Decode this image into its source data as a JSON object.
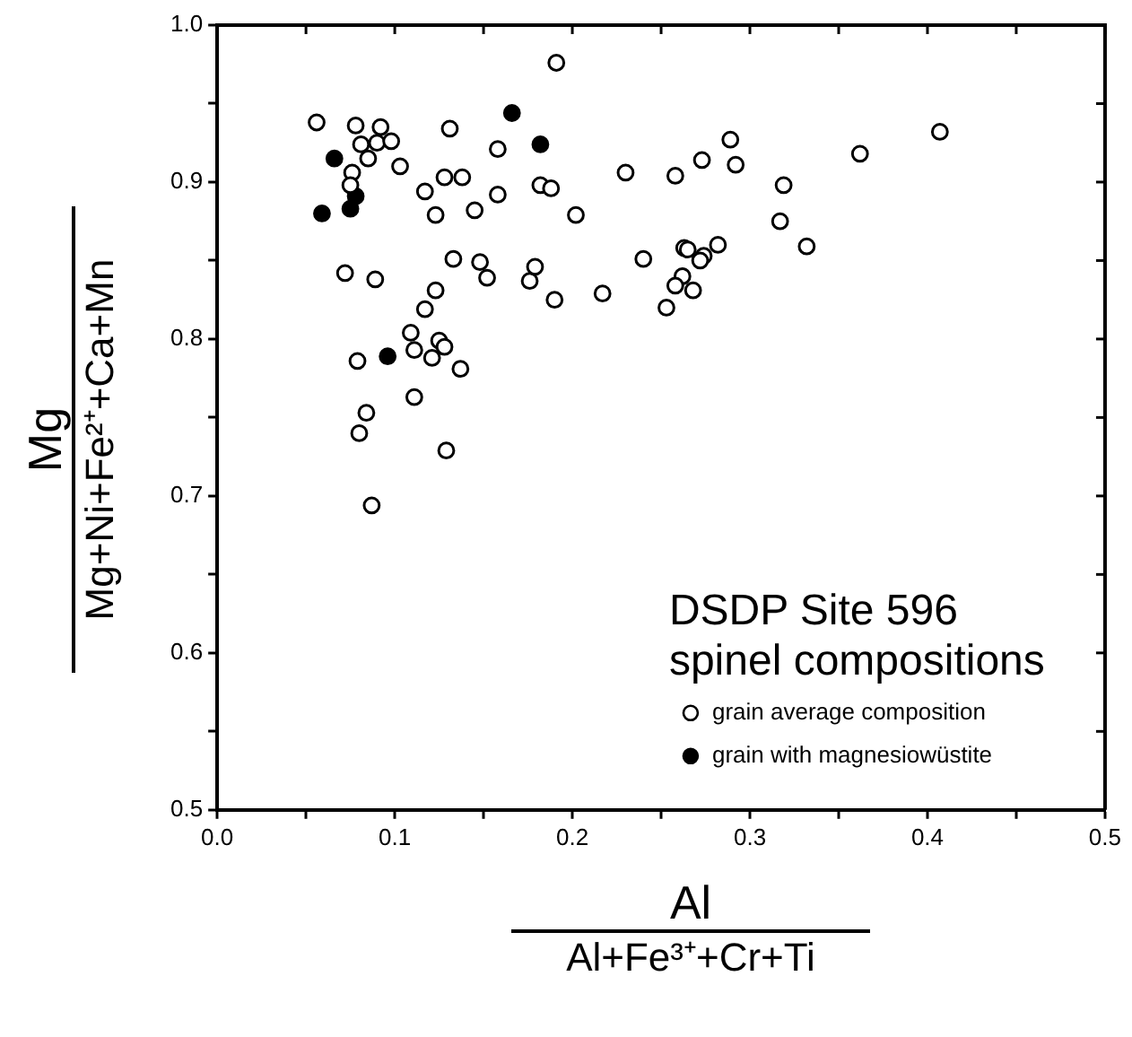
{
  "chart_data": {
    "type": "scatter",
    "xlabel": "Al\nAl+Fe³⁺+Cr+Ti",
    "ylabel": "Mg\nMg+Ni+Fe²⁺+Ca+Mn",
    "legend_title": "DSDP Site 596\nspinel compositions",
    "legend": "bottom right",
    "marker": "circle",
    "grid": false,
    "xlim": [
      0,
      0.5
    ],
    "ylim": [
      0.5,
      1.0
    ],
    "xticks": [
      {
        "value": 0,
        "label": "0.0"
      },
      {
        "value": 0.05,
        "label": null
      },
      0.1,
      {
        "value": 0.15,
        "label": null
      },
      0.2,
      {
        "value": 0.25,
        "label": null
      },
      0.3,
      {
        "value": 0.35,
        "label": null
      },
      0.4,
      {
        "value": 0.45,
        "label": null
      },
      0.5
    ],
    "yticks": [
      0.5,
      {
        "value": 0.55,
        "label": null
      },
      0.6,
      {
        "value": 0.65,
        "label": null
      },
      0.7,
      {
        "value": 0.75,
        "label": null
      },
      0.8,
      {
        "value": 0.85,
        "label": null
      },
      0.9,
      {
        "value": 0.95,
        "label": null
      },
      {
        "value": 1.0,
        "label": "1.0"
      }
    ],
    "series": [
      {
        "name": "grain average composition",
        "color": "#ffffff",
        "x": [
          0.056,
          0.078,
          0.092,
          0.131,
          0.081,
          0.09,
          0.098,
          0.085,
          0.158,
          0.103,
          0.076,
          0.075,
          0.117,
          0.128,
          0.138,
          0.158,
          0.123,
          0.145,
          0.182,
          0.188,
          0.202,
          0.072,
          0.089,
          0.133,
          0.148,
          0.152,
          0.176,
          0.179,
          0.19,
          0.123,
          0.117,
          0.109,
          0.111,
          0.125,
          0.128,
          0.121,
          0.137,
          0.079,
          0.111,
          0.084,
          0.08,
          0.129,
          0.087,
          0.191,
          0.23,
          0.258,
          0.273,
          0.289,
          0.292,
          0.319,
          0.317,
          0.332,
          0.362,
          0.407,
          0.24,
          0.217,
          0.253,
          0.263,
          0.265,
          0.274,
          0.272,
          0.282,
          0.262,
          0.258,
          0.268
        ],
        "values": [
          0.938,
          0.936,
          0.935,
          0.934,
          0.924,
          0.925,
          0.926,
          0.915,
          0.921,
          0.91,
          0.906,
          0.898,
          0.894,
          0.903,
          0.903,
          0.892,
          0.879,
          0.882,
          0.898,
          0.896,
          0.879,
          0.842,
          0.838,
          0.851,
          0.849,
          0.839,
          0.837,
          0.846,
          0.825,
          0.831,
          0.819,
          0.804,
          0.793,
          0.799,
          0.795,
          0.788,
          0.781,
          0.786,
          0.763,
          0.753,
          0.74,
          0.729,
          0.694,
          0.976,
          0.906,
          0.904,
          0.914,
          0.927,
          0.911,
          0.898,
          0.875,
          0.859,
          0.918,
          0.932,
          0.851,
          0.829,
          0.82,
          0.858,
          0.857,
          0.853,
          0.85,
          0.86,
          0.84,
          0.834,
          0.831
        ]
      },
      {
        "name": "grain with magnesiowüstite",
        "color": "#000000",
        "x": [
          0.059,
          0.066,
          0.075,
          0.078,
          0.096,
          0.166,
          0.182
        ],
        "values": [
          0.88,
          0.915,
          0.883,
          0.891,
          0.789,
          0.944,
          0.924
        ]
      }
    ]
  }
}
